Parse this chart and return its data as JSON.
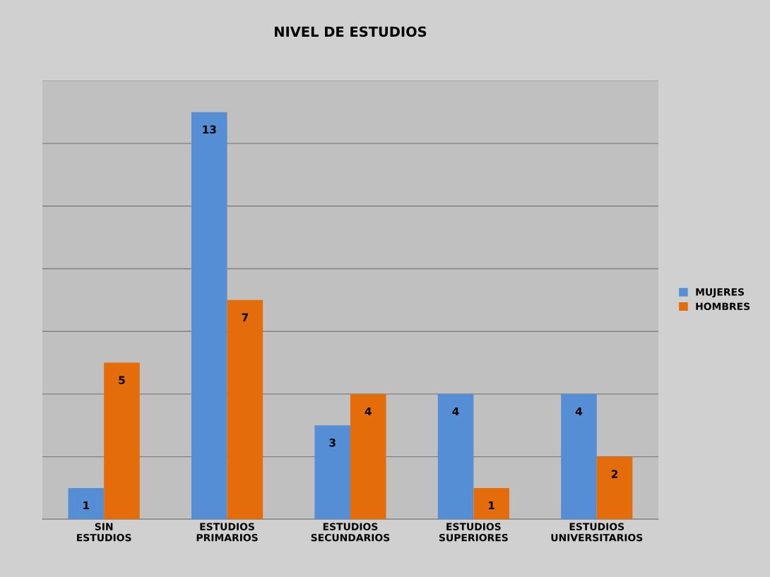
{
  "chart_data": {
    "type": "bar",
    "title": "NIVEL DE ESTUDIOS",
    "categories": [
      "SIN ESTUDIOS",
      "ESTUDIOS PRIMARIOS",
      "ESTUDIOS SECUNDARIOS",
      "ESTUDIOS SUPERIORES",
      "ESTUDIOS UNIVERSITARIOS"
    ],
    "series": [
      {
        "name": "MUJERES",
        "color": "#558ed5",
        "values": [
          1,
          13,
          3,
          4,
          4
        ]
      },
      {
        "name": "HOMBRES",
        "color": "#e46c0a",
        "values": [
          5,
          7,
          4,
          1,
          2
        ]
      }
    ],
    "ylim": [
      0,
      14
    ],
    "yticks": [
      {
        "value": 0,
        "label": null
      },
      {
        "value": 2,
        "label": null
      },
      {
        "value": 4,
        "label": null
      },
      {
        "value": 6,
        "label": null
      },
      {
        "value": 8,
        "label": null
      },
      {
        "value": 10,
        "label": null
      },
      {
        "value": 12,
        "label": null
      },
      {
        "value": 14,
        "label": null
      }
    ],
    "tick_labels": "x",
    "grid": "y",
    "legend": "right",
    "data_labels": true
  }
}
